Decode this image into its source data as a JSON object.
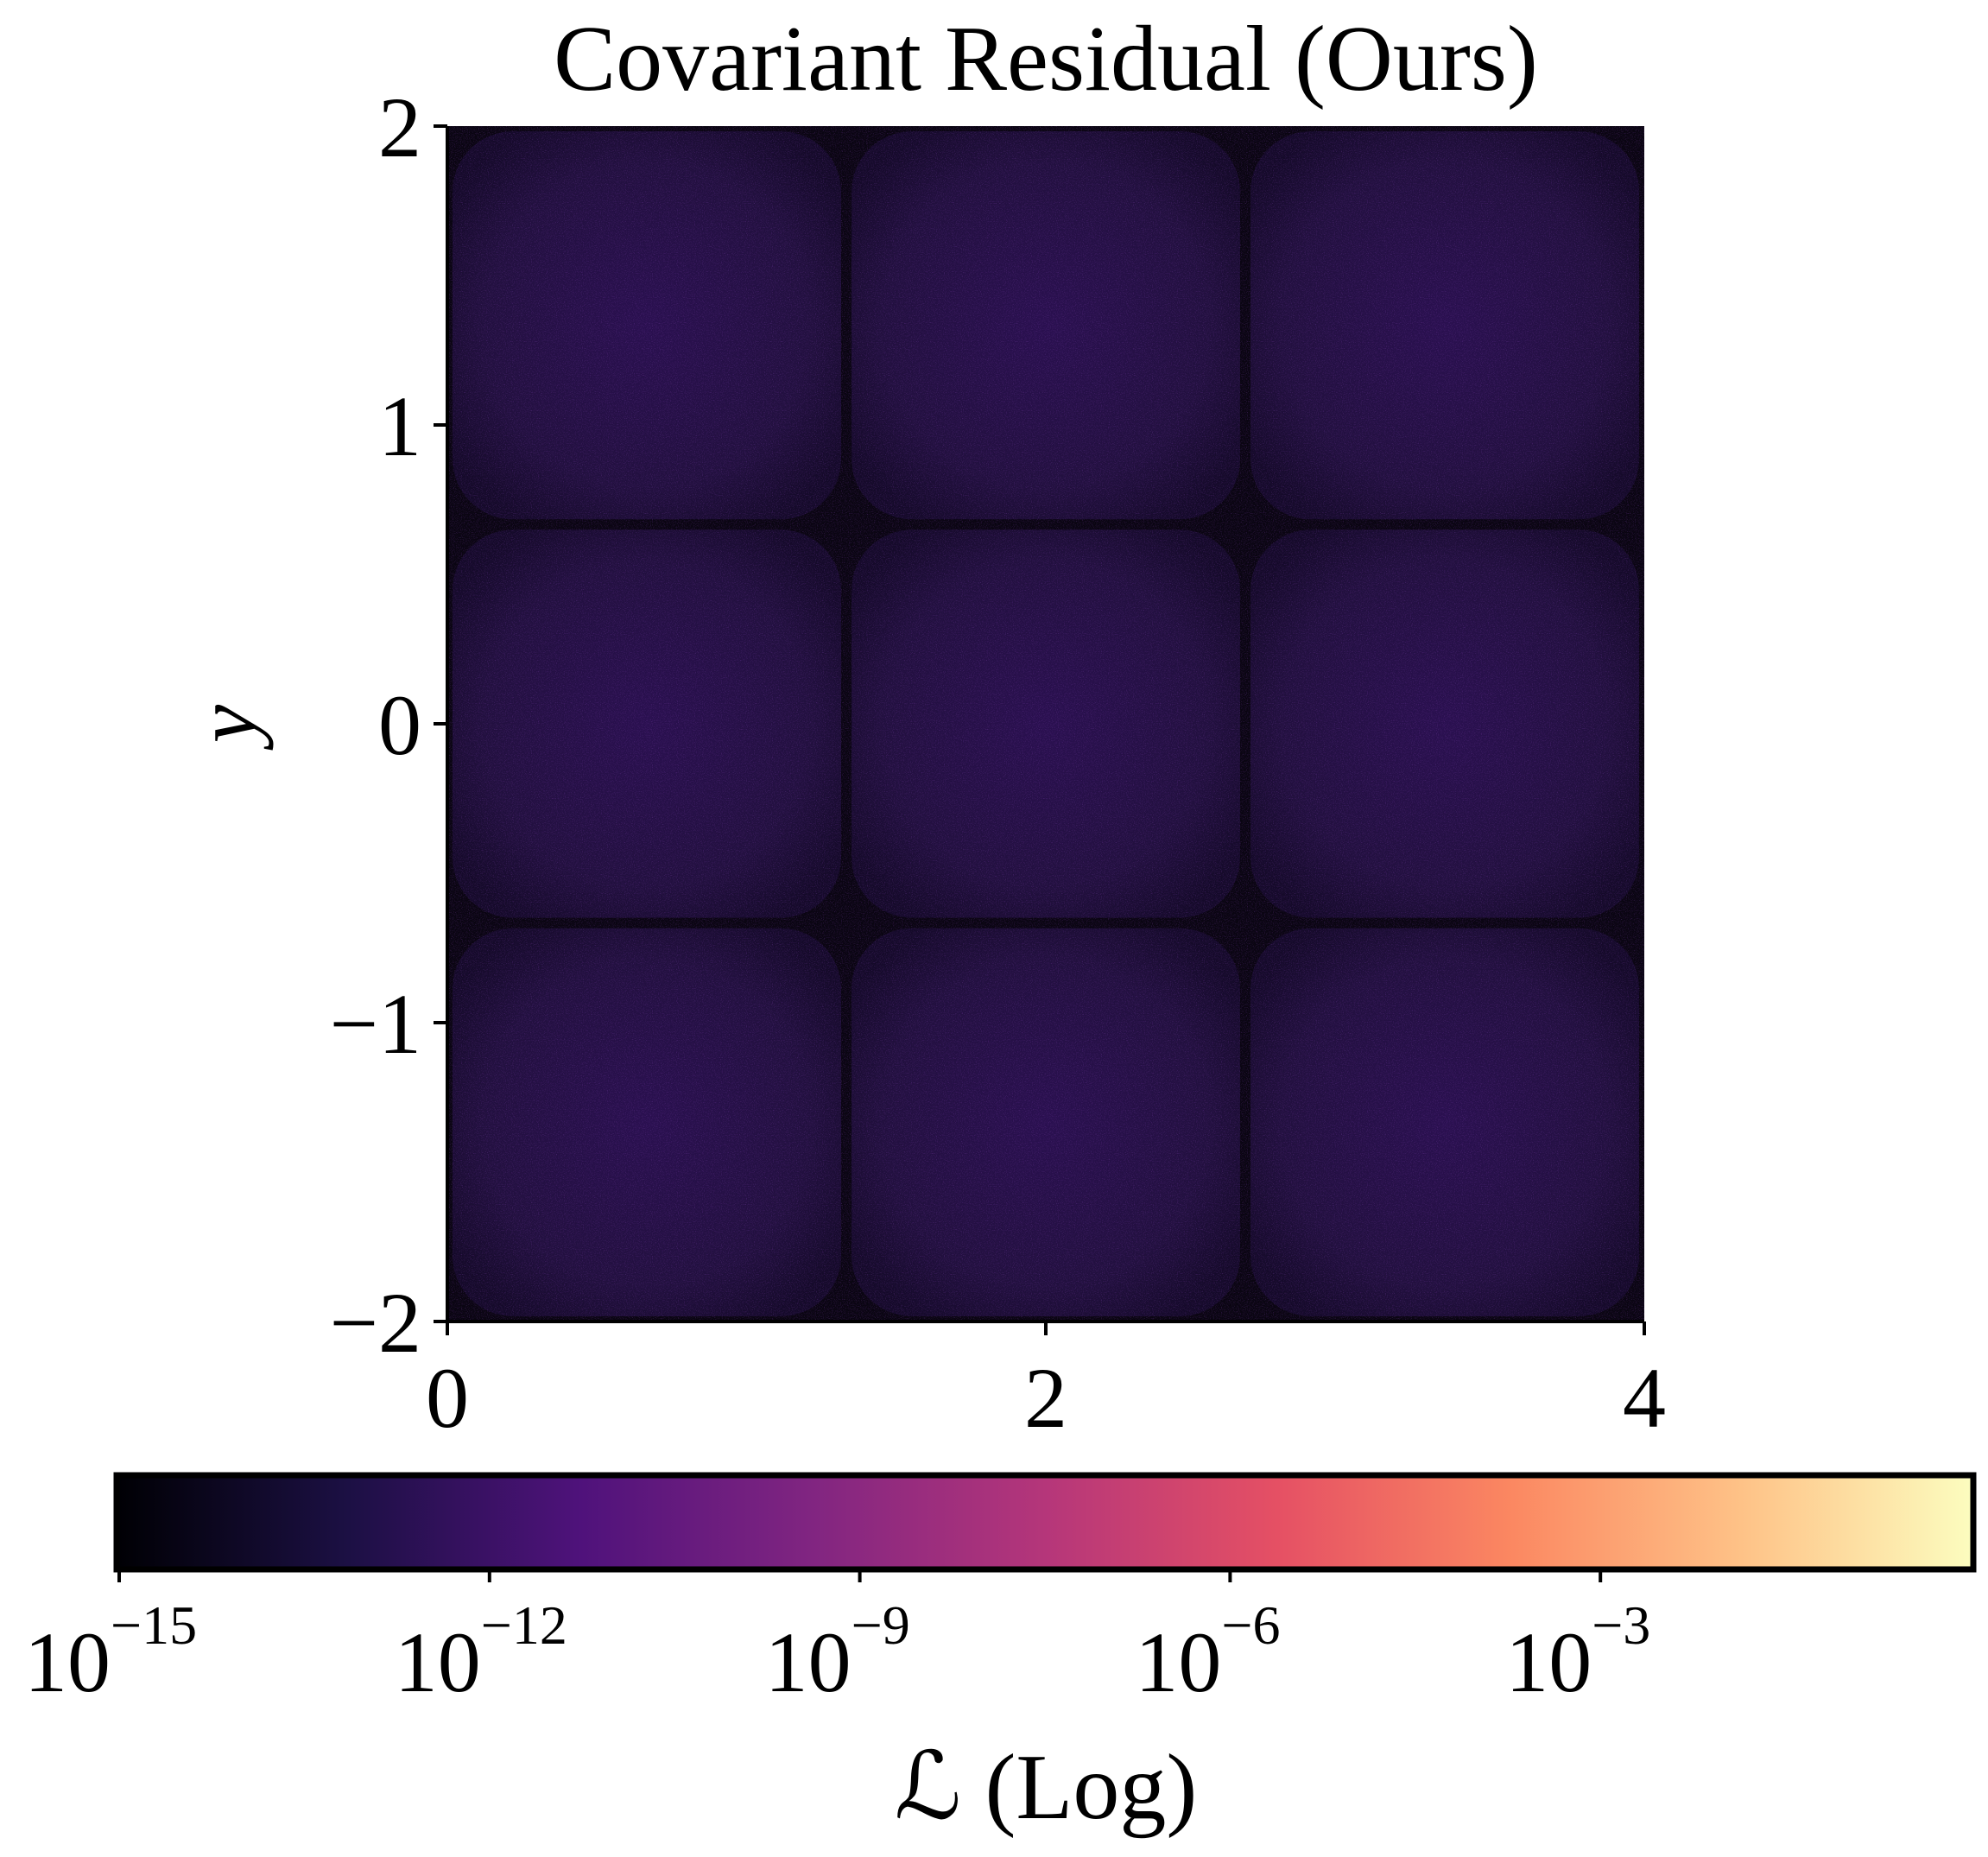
{
  "chart_data": {
    "type": "heatmap",
    "title": "Covariant Residual (Ours)",
    "xlabel": "",
    "ylabel": "y",
    "xlim": [
      0,
      4
    ],
    "ylim": [
      -2,
      2
    ],
    "x_ticks": [
      {
        "value": 0,
        "label": "0"
      },
      {
        "value": 2,
        "label": "2"
      },
      {
        "value": 4,
        "label": "4"
      }
    ],
    "y_ticks": [
      {
        "value": 2,
        "label": "2"
      },
      {
        "value": 1,
        "label": "1"
      },
      {
        "value": 0,
        "label": "0"
      },
      {
        "value": -1,
        "label": "−1"
      },
      {
        "value": -2,
        "label": "−2"
      }
    ],
    "grid": false,
    "tiles": {
      "cols": 3,
      "rows": 3,
      "typical_exponent": -13,
      "boundary_exponent": -15,
      "description_of_structure": "3x3 grid of noisy patches near 1e-13 separated by darker seams"
    },
    "colorbar": {
      "label": "ℒ (Log)",
      "colormap": "magma",
      "scale": "log",
      "min_exponent": -15,
      "max_exponent": 0,
      "ticks": [
        {
          "value": -15,
          "base": "10",
          "exponent": "−15"
        },
        {
          "value": -12,
          "base": "10",
          "exponent": "−12"
        },
        {
          "value": -9,
          "base": "10",
          "exponent": "−9"
        },
        {
          "value": -6,
          "base": "10",
          "exponent": "−6"
        },
        {
          "value": -3,
          "base": "10",
          "exponent": "−3"
        }
      ],
      "stops": [
        "#000004",
        "#1c1044",
        "#4f127b",
        "#812581",
        "#b5367a",
        "#e55064",
        "#fb8761",
        "#fec287",
        "#fcfdbf"
      ]
    }
  }
}
